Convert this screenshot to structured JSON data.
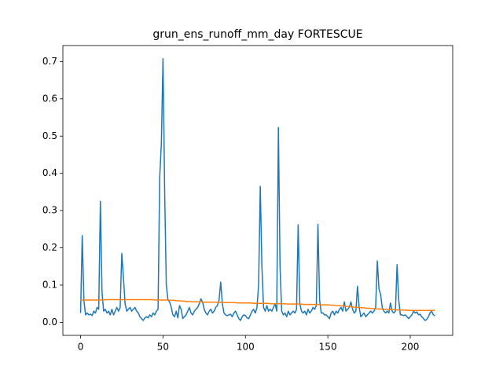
{
  "chart_data": {
    "type": "line",
    "title": "grun_ens_runoff_mm_day FORTESCUE",
    "x": [
      0,
      1,
      2,
      3,
      4,
      5,
      6,
      7,
      8,
      9,
      10,
      11,
      12,
      13,
      14,
      15,
      16,
      17,
      18,
      19,
      20,
      21,
      22,
      23,
      24,
      25,
      26,
      27,
      28,
      29,
      30,
      31,
      32,
      33,
      34,
      35,
      36,
      37,
      38,
      39,
      40,
      41,
      42,
      43,
      44,
      45,
      46,
      47,
      48,
      49,
      50,
      51,
      52,
      53,
      54,
      55,
      56,
      57,
      58,
      59,
      60,
      61,
      62,
      63,
      64,
      65,
      66,
      67,
      68,
      69,
      70,
      71,
      72,
      73,
      74,
      75,
      76,
      77,
      78,
      79,
      80,
      81,
      82,
      83,
      84,
      85,
      86,
      87,
      88,
      89,
      90,
      91,
      92,
      93,
      94,
      95,
      96,
      97,
      98,
      99,
      100,
      101,
      102,
      103,
      104,
      105,
      106,
      107,
      108,
      109,
      110,
      111,
      112,
      113,
      114,
      115,
      116,
      117,
      118,
      119,
      120,
      121,
      122,
      123,
      124,
      125,
      126,
      127,
      128,
      129,
      130,
      131,
      132,
      133,
      134,
      135,
      136,
      137,
      138,
      139,
      140,
      141,
      142,
      143,
      144,
      145,
      146,
      147,
      148,
      149,
      150,
      151,
      152,
      153,
      154,
      155,
      156,
      157,
      158,
      159,
      160,
      161,
      162,
      163,
      164,
      165,
      166,
      167,
      168,
      169,
      170,
      171,
      172,
      173,
      174,
      175,
      176,
      177,
      178,
      179,
      180,
      181,
      182,
      183,
      184,
      185,
      186,
      187,
      188,
      189,
      190,
      191,
      192,
      193,
      194,
      195,
      196,
      197,
      198,
      199,
      200,
      201,
      202,
      203,
      204,
      205,
      206,
      207,
      208,
      209,
      210,
      211,
      212,
      213,
      214,
      215
    ],
    "series": [
      {
        "color": "#1f77b4",
        "values": [
          0.025,
          0.233,
          0.06,
          0.02,
          0.025,
          0.02,
          0.022,
          0.018,
          0.03,
          0.025,
          0.04,
          0.035,
          0.325,
          0.08,
          0.03,
          0.035,
          0.025,
          0.03,
          0.02,
          0.035,
          0.02,
          0.03,
          0.04,
          0.03,
          0.04,
          0.185,
          0.12,
          0.05,
          0.03,
          0.035,
          0.04,
          0.03,
          0.035,
          0.04,
          0.03,
          0.025,
          0.015,
          0.01,
          0.005,
          0.012,
          0.015,
          0.012,
          0.02,
          0.015,
          0.025,
          0.02,
          0.03,
          0.035,
          0.39,
          0.48,
          0.708,
          0.35,
          0.1,
          0.06,
          0.055,
          0.04,
          0.02,
          0.015,
          0.03,
          0.012,
          0.045,
          0.035,
          0.01,
          0.015,
          0.02,
          0.03,
          0.04,
          0.025,
          0.02,
          0.03,
          0.035,
          0.04,
          0.05,
          0.063,
          0.055,
          0.035,
          0.025,
          0.02,
          0.03,
          0.035,
          0.025,
          0.03,
          0.04,
          0.045,
          0.06,
          0.108,
          0.05,
          0.025,
          0.02,
          0.018,
          0.02,
          0.022,
          0.015,
          0.025,
          0.03,
          0.02,
          0.01,
          0.005,
          0.015,
          0.02,
          0.018,
          0.012,
          0.01,
          0.02,
          0.03,
          0.035,
          0.025,
          0.04,
          0.1,
          0.365,
          0.15,
          0.04,
          0.03,
          0.045,
          0.03,
          0.035,
          0.03,
          0.04,
          0.05,
          0.03,
          0.523,
          0.15,
          0.03,
          0.02,
          0.025,
          0.015,
          0.03,
          0.02,
          0.025,
          0.03,
          0.025,
          0.035,
          0.262,
          0.05,
          0.03,
          0.025,
          0.03,
          0.02,
          0.035,
          0.025,
          0.03,
          0.04,
          0.035,
          0.045,
          0.263,
          0.06,
          0.025,
          0.025,
          0.02,
          0.02,
          0.015,
          0.01,
          0.025,
          0.03,
          0.02,
          0.03,
          0.025,
          0.035,
          0.04,
          0.03,
          0.055,
          0.03,
          0.035,
          0.04,
          0.055,
          0.035,
          0.025,
          0.03,
          0.097,
          0.04,
          0.015,
          0.02,
          0.025,
          0.015,
          0.02,
          0.025,
          0.03,
          0.025,
          0.03,
          0.04,
          0.165,
          0.09,
          0.075,
          0.04,
          0.03,
          0.025,
          0.03,
          0.025,
          0.052,
          0.03,
          0.025,
          0.03,
          0.155,
          0.06,
          0.02,
          0.02,
          0.018,
          0.02,
          0.015,
          0.01,
          0.015,
          0.02,
          0.03,
          0.025,
          0.028,
          0.02,
          0.022,
          0.015,
          0.01,
          0.005,
          0.008,
          0.015,
          0.025,
          0.03,
          0.02,
          0.018
        ]
      },
      {
        "color": "#ff7f0e",
        "values": [
          0.06,
          0.06,
          0.06,
          0.06,
          0.06,
          0.06,
          0.06,
          0.06,
          0.06,
          0.06,
          0.06,
          0.06,
          0.06,
          0.06,
          0.06,
          0.061,
          0.061,
          0.061,
          0.061,
          0.061,
          0.061,
          0.061,
          0.061,
          0.061,
          0.061,
          0.061,
          0.061,
          0.061,
          0.061,
          0.061,
          0.061,
          0.061,
          0.061,
          0.061,
          0.061,
          0.061,
          0.061,
          0.061,
          0.061,
          0.061,
          0.061,
          0.061,
          0.061,
          0.061,
          0.061,
          0.06,
          0.06,
          0.06,
          0.06,
          0.06,
          0.06,
          0.06,
          0.06,
          0.06,
          0.06,
          0.059,
          0.059,
          0.059,
          0.058,
          0.058,
          0.058,
          0.057,
          0.057,
          0.057,
          0.056,
          0.056,
          0.056,
          0.056,
          0.055,
          0.055,
          0.055,
          0.055,
          0.055,
          0.055,
          0.055,
          0.054,
          0.054,
          0.054,
          0.054,
          0.054,
          0.054,
          0.054,
          0.054,
          0.054,
          0.054,
          0.053,
          0.053,
          0.053,
          0.053,
          0.053,
          0.053,
          0.053,
          0.053,
          0.053,
          0.053,
          0.052,
          0.052,
          0.052,
          0.052,
          0.052,
          0.052,
          0.052,
          0.052,
          0.052,
          0.052,
          0.051,
          0.051,
          0.051,
          0.051,
          0.051,
          0.051,
          0.051,
          0.051,
          0.051,
          0.051,
          0.05,
          0.05,
          0.05,
          0.05,
          0.05,
          0.05,
          0.05,
          0.05,
          0.05,
          0.05,
          0.049,
          0.049,
          0.049,
          0.049,
          0.049,
          0.049,
          0.049,
          0.049,
          0.049,
          0.049,
          0.048,
          0.048,
          0.048,
          0.048,
          0.048,
          0.048,
          0.048,
          0.048,
          0.048,
          0.048,
          0.047,
          0.047,
          0.047,
          0.047,
          0.047,
          0.047,
          0.047,
          0.046,
          0.046,
          0.046,
          0.045,
          0.045,
          0.045,
          0.044,
          0.044,
          0.044,
          0.043,
          0.043,
          0.042,
          0.042,
          0.041,
          0.041,
          0.04,
          0.04,
          0.04,
          0.039,
          0.039,
          0.039,
          0.038,
          0.038,
          0.038,
          0.037,
          0.037,
          0.037,
          0.036,
          0.036,
          0.036,
          0.036,
          0.035,
          0.035,
          0.035,
          0.035,
          0.034,
          0.034,
          0.034,
          0.034,
          0.034,
          0.033,
          0.033,
          0.033,
          0.033,
          0.033,
          0.033,
          0.032,
          0.032,
          0.032,
          0.032,
          0.032,
          0.032,
          0.032,
          0.032,
          0.032,
          0.032,
          0.032,
          0.032,
          0.032,
          0.032,
          0.032,
          0.032,
          0.032,
          0.032
        ]
      }
    ],
    "xlim": [
      -10.75,
      225.75
    ],
    "xticks": [
      0,
      50,
      100,
      150,
      200
    ],
    "ylim": [
      -0.035,
      0.743
    ],
    "yticks": [
      {
        "value": 0,
        "label": "0.0"
      },
      0.1,
      0.2,
      0.3,
      0.4,
      0.5,
      0.6,
      0.7
    ]
  }
}
